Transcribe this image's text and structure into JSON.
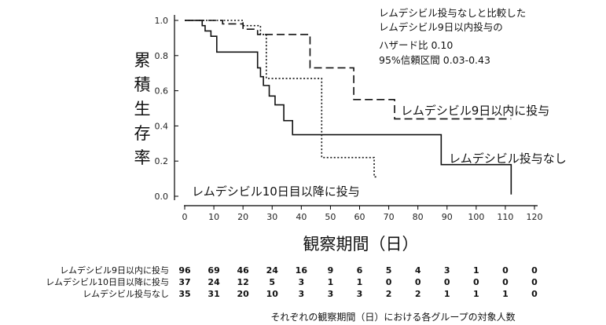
{
  "chart_data": {
    "type": "line",
    "step": "post",
    "xlabel": "観察期間（日）",
    "ylabel": "累積生存率",
    "xlim": [
      0,
      120
    ],
    "ylim": [
      0,
      1.0
    ],
    "xticks": [
      "0",
      "10",
      "20",
      "30",
      "40",
      "50",
      "60",
      "70",
      "80",
      "90",
      "100",
      "110",
      "120"
    ],
    "yticks": [
      "0.0",
      "0.2",
      "0.4",
      "0.6",
      "0.8",
      "1.0"
    ],
    "grid": false,
    "series": [
      {
        "name": "レムデシビル9日以内に投与",
        "style": "dashed",
        "x": [
          0,
          13,
          20,
          25,
          43,
          58,
          72,
          112
        ],
        "y": [
          1.0,
          0.98,
          0.95,
          0.92,
          0.73,
          0.55,
          0.44,
          0.44
        ]
      },
      {
        "name": "レムデシビル10日目以降に投与",
        "style": "dotted",
        "x": [
          0,
          20,
          26,
          28,
          47,
          65,
          66
        ],
        "y": [
          1.0,
          0.97,
          0.92,
          0.67,
          0.22,
          0.11,
          0.11
        ]
      },
      {
        "name": "レムデシビル投与なし",
        "style": "solid",
        "x": [
          0,
          6,
          7,
          9,
          11,
          25,
          26,
          27,
          29,
          31,
          34,
          37,
          88,
          112,
          112
        ],
        "y": [
          1.0,
          0.97,
          0.94,
          0.91,
          0.82,
          0.73,
          0.68,
          0.63,
          0.57,
          0.52,
          0.43,
          0.35,
          0.18,
          0.18,
          0.01
        ]
      }
    ],
    "annotation": [
      "レムデシビル投与なしと比較した",
      "レムデシビル9日以内投与の",
      "ハザード比 0.10",
      "95%信頼区間 0.03-0.43"
    ],
    "risk_table": {
      "times": [
        "0",
        "10",
        "20",
        "30",
        "40",
        "50",
        "60",
        "70",
        "80",
        "90",
        "100",
        "110",
        "120"
      ],
      "rows": [
        {
          "label": "レムデシビル9日以内に投与",
          "values": [
            "96",
            "69",
            "46",
            "24",
            "16",
            "9",
            "6",
            "5",
            "4",
            "3",
            "1",
            "0",
            "0"
          ]
        },
        {
          "label": "レムデシビル10日目以降に投与",
          "values": [
            "37",
            "24",
            "12",
            "5",
            "3",
            "1",
            "1",
            "0",
            "0",
            "0",
            "0",
            "0",
            "0"
          ]
        },
        {
          "label": "レムデシビル投与なし",
          "values": [
            "35",
            "31",
            "20",
            "10",
            "3",
            "3",
            "3",
            "2",
            "2",
            "1",
            "1",
            "1",
            "0"
          ]
        }
      ]
    },
    "footnote": "それぞれの観察期間（日）における各グループの対象人数"
  }
}
